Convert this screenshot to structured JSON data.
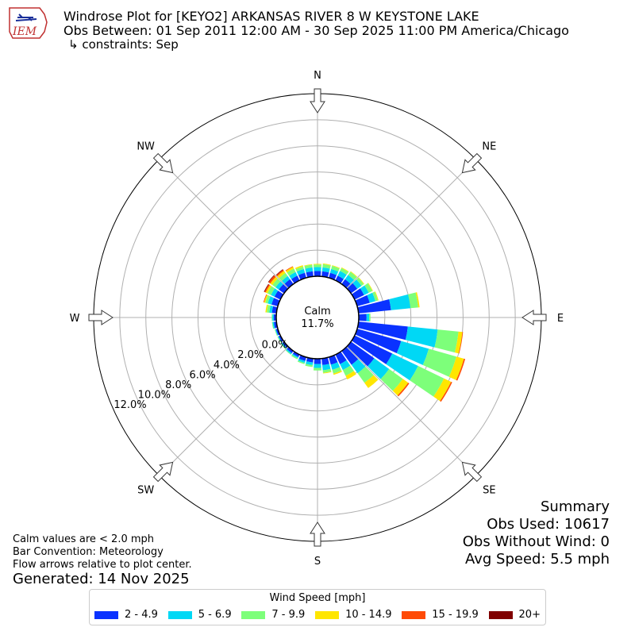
{
  "header": {
    "logo_text": "IEM",
    "title": "Windrose Plot for [KEYO2] ARKANSAS RIVER 8 W KEYSTONE LAKE",
    "obs_between": "Obs Between: 01 Sep 2011 12:00 AM - 30 Sep 2025 11:00 PM America/Chicago",
    "constraints": "↳ constraints: Sep"
  },
  "summary": {
    "heading": "Summary",
    "obs_used": "Obs Used: 10617",
    "obs_without_wind": "Obs Without Wind: 0",
    "avg_speed": "Avg Speed: 5.5 mph"
  },
  "notes": {
    "calm": "Calm values are < 2.0 mph",
    "convention": "Bar Convention: Meteorology",
    "arrows": "Flow arrows relative to plot center.",
    "generated": "Generated: 14 Nov 2025"
  },
  "legend": {
    "title": "Wind Speed [mph]",
    "items": [
      {
        "label": "2 - 4.9",
        "color": "#0a32ff"
      },
      {
        "label": "5 - 6.9",
        "color": "#00d8f5"
      },
      {
        "label": "7 - 9.9",
        "color": "#7dff7a"
      },
      {
        "label": "10 - 14.9",
        "color": "#ffe600"
      },
      {
        "label": "15 - 19.9",
        "color": "#ff4a05"
      },
      {
        "label": "20+",
        "color": "#800000"
      }
    ]
  },
  "chart_data": {
    "type": "windrose",
    "calm": {
      "label": "Calm",
      "value": "11.7%",
      "percent": 11.7
    },
    "directions": [
      "N",
      "NE",
      "E",
      "SE",
      "S",
      "SW",
      "W",
      "NW"
    ],
    "radial_ticks": [
      "0.0%",
      "2.0%",
      "4.0%",
      "6.0%",
      "8.0%",
      "10.0%",
      "12.0%"
    ],
    "rmax_percent": 14,
    "bins": [
      "2 - 4.9",
      "5 - 6.9",
      "7 - 9.9",
      "10 - 14.9",
      "15 - 19.9",
      "20+"
    ],
    "sectors": [
      {
        "dir_deg": 0,
        "values": [
          0.4,
          0.3,
          0.2,
          0.05,
          0.0,
          0.0
        ]
      },
      {
        "dir_deg": 10,
        "values": [
          0.4,
          0.3,
          0.25,
          0.05,
          0.0,
          0.0
        ]
      },
      {
        "dir_deg": 20,
        "values": [
          0.4,
          0.3,
          0.25,
          0.05,
          0.0,
          0.0
        ]
      },
      {
        "dir_deg": 30,
        "values": [
          0.4,
          0.4,
          0.25,
          0.05,
          0.0,
          0.0
        ]
      },
      {
        "dir_deg": 40,
        "values": [
          0.45,
          0.4,
          0.3,
          0.05,
          0.0,
          0.0
        ]
      },
      {
        "dir_deg": 50,
        "values": [
          0.6,
          0.4,
          0.2,
          0.05,
          0.0,
          0.0
        ]
      },
      {
        "dir_deg": 60,
        "values": [
          0.8,
          0.4,
          0.3,
          0.05,
          0.0,
          0.0
        ]
      },
      {
        "dir_deg": 70,
        "values": [
          1.0,
          0.45,
          0.2,
          0.05,
          0.0,
          0.0
        ]
      },
      {
        "dir_deg": 80,
        "values": [
          2.5,
          1.5,
          0.6,
          0.1,
          0.0,
          0.0
        ]
      },
      {
        "dir_deg": 90,
        "values": [
          0.6,
          0.2,
          0.1,
          0.0,
          0.0,
          0.0
        ]
      },
      {
        "dir_deg": 100,
        "values": [
          3.8,
          2.3,
          1.6,
          0.3,
          0.05,
          0.0
        ]
      },
      {
        "dir_deg": 110,
        "values": [
          3.5,
          2.2,
          2.2,
          0.6,
          0.1,
          0.0
        ]
      },
      {
        "dir_deg": 120,
        "values": [
          3.2,
          2.2,
          2.2,
          0.6,
          0.1,
          0.0
        ]
      },
      {
        "dir_deg": 130,
        "values": [
          2.2,
          1.4,
          1.3,
          0.5,
          0.1,
          0.0
        ]
      },
      {
        "dir_deg": 140,
        "values": [
          1.3,
          0.8,
          0.9,
          0.5,
          0.0,
          0.0
        ]
      },
      {
        "dir_deg": 150,
        "values": [
          0.8,
          0.5,
          0.5,
          0.3,
          0.0,
          0.0
        ]
      },
      {
        "dir_deg": 160,
        "values": [
          0.6,
          0.4,
          0.3,
          0.1,
          0.0,
          0.0
        ]
      },
      {
        "dir_deg": 170,
        "values": [
          0.5,
          0.4,
          0.2,
          0.05,
          0.0,
          0.0
        ]
      },
      {
        "dir_deg": 180,
        "values": [
          0.4,
          0.3,
          0.2,
          0.0,
          0.0,
          0.0
        ]
      },
      {
        "dir_deg": 190,
        "values": [
          0.3,
          0.2,
          0.15,
          0.0,
          0.0,
          0.0
        ]
      },
      {
        "dir_deg": 200,
        "values": [
          0.3,
          0.15,
          0.1,
          0.0,
          0.0,
          0.0
        ]
      },
      {
        "dir_deg": 210,
        "values": [
          0.2,
          0.1,
          0.1,
          0.0,
          0.0,
          0.0
        ]
      },
      {
        "dir_deg": 220,
        "values": [
          0.2,
          0.1,
          0.05,
          0.0,
          0.0,
          0.0
        ]
      },
      {
        "dir_deg": 230,
        "values": [
          0.15,
          0.1,
          0.05,
          0.0,
          0.0,
          0.0
        ]
      },
      {
        "dir_deg": 240,
        "values": [
          0.15,
          0.05,
          0.05,
          0.0,
          0.0,
          0.0
        ]
      },
      {
        "dir_deg": 250,
        "values": [
          0.15,
          0.05,
          0.05,
          0.0,
          0.0,
          0.0
        ]
      },
      {
        "dir_deg": 260,
        "values": [
          0.2,
          0.1,
          0.05,
          0.0,
          0.0,
          0.0
        ]
      },
      {
        "dir_deg": 270,
        "values": [
          0.2,
          0.1,
          0.05,
          0.0,
          0.0,
          0.0
        ]
      },
      {
        "dir_deg": 280,
        "values": [
          0.35,
          0.2,
          0.2,
          0.1,
          0.0,
          0.0
        ]
      },
      {
        "dir_deg": 290,
        "values": [
          0.5,
          0.3,
          0.2,
          0.1,
          0.05,
          0.0
        ]
      },
      {
        "dir_deg": 300,
        "values": [
          0.5,
          0.3,
          0.3,
          0.15,
          0.1,
          0.05
        ]
      },
      {
        "dir_deg": 310,
        "values": [
          0.5,
          0.3,
          0.3,
          0.2,
          0.15,
          0.05
        ]
      },
      {
        "dir_deg": 320,
        "values": [
          0.45,
          0.3,
          0.3,
          0.2,
          0.1,
          0.05
        ]
      },
      {
        "dir_deg": 330,
        "values": [
          0.4,
          0.3,
          0.3,
          0.15,
          0.05,
          0.0
        ]
      },
      {
        "dir_deg": 340,
        "values": [
          0.4,
          0.3,
          0.2,
          0.1,
          0.0,
          0.0
        ]
      },
      {
        "dir_deg": 350,
        "values": [
          0.4,
          0.3,
          0.2,
          0.05,
          0.0,
          0.0
        ]
      }
    ]
  }
}
